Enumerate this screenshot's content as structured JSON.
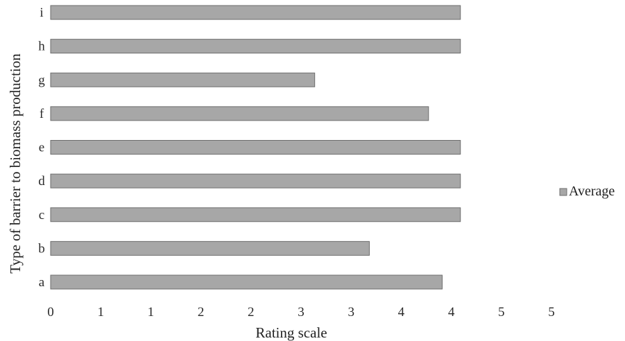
{
  "chart_data": {
    "type": "bar",
    "orientation": "horizontal",
    "title": "",
    "xlabel": "Rating scale",
    "ylabel": "Type of barrier to biomass production",
    "categories": [
      "a",
      "b",
      "c",
      "d",
      "e",
      "f",
      "g",
      "h",
      "i"
    ],
    "series": [
      {
        "name": "Average",
        "values": [
          4.3,
          3.5,
          4.5,
          4.5,
          4.5,
          4.15,
          2.9,
          4.5,
          4.5
        ]
      }
    ],
    "x_ticks": [
      "0",
      "1",
      "1",
      "2",
      "2",
      "3",
      "3",
      "4",
      "4",
      "5",
      "5"
    ],
    "xlim": [
      0,
      5.5
    ],
    "grid": false,
    "legend_position": "right",
    "colors": {
      "bar_fill": "#a7a7a7",
      "bar_edge": "#6e6e6e",
      "legend_swatch": "#a7a7a7"
    }
  }
}
